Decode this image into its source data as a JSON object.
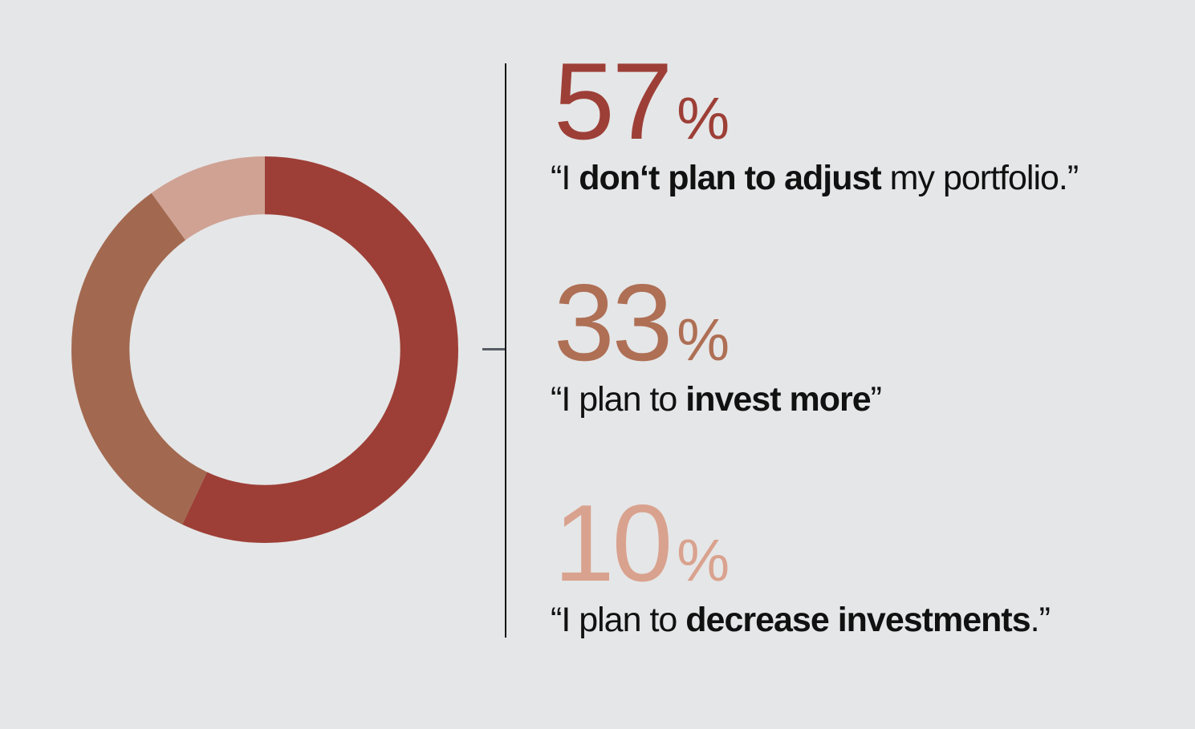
{
  "background_color": "#e5e6e7",
  "divider": {
    "color": "#141414"
  },
  "tick": {
    "color": "#565c62"
  },
  "chart_data": {
    "type": "pie",
    "subtype": "donut",
    "title": "",
    "categories": [
      "I don‘t plan to adjust my portfolio.",
      "I plan to invest more",
      "I plan to decrease investments."
    ],
    "values": [
      57,
      33,
      10
    ],
    "unit": "%",
    "colors": [
      "#9d3f37",
      "#a26950",
      "#cfa294"
    ],
    "start_angle_deg": 0,
    "direction": "clockwise",
    "inner_radius_ratio": 0.7,
    "legend": "none",
    "labels": "external-callouts"
  },
  "stats": [
    {
      "value": "57",
      "percent_sign": "%",
      "number_color": "#9d3f37",
      "quote_prefix": "“I ",
      "quote_bold": "don‘t plan to adjust",
      "quote_suffix": " my portfolio.”"
    },
    {
      "value": "33",
      "percent_sign": "%",
      "number_color": "#ae6f55",
      "quote_prefix": "“I plan to ",
      "quote_bold": "invest more",
      "quote_suffix": "”"
    },
    {
      "value": "10",
      "percent_sign": "%",
      "number_color": "#d9a28e",
      "quote_prefix": "“I plan to ",
      "quote_bold": "decrease investments",
      "quote_suffix": ".”"
    }
  ]
}
